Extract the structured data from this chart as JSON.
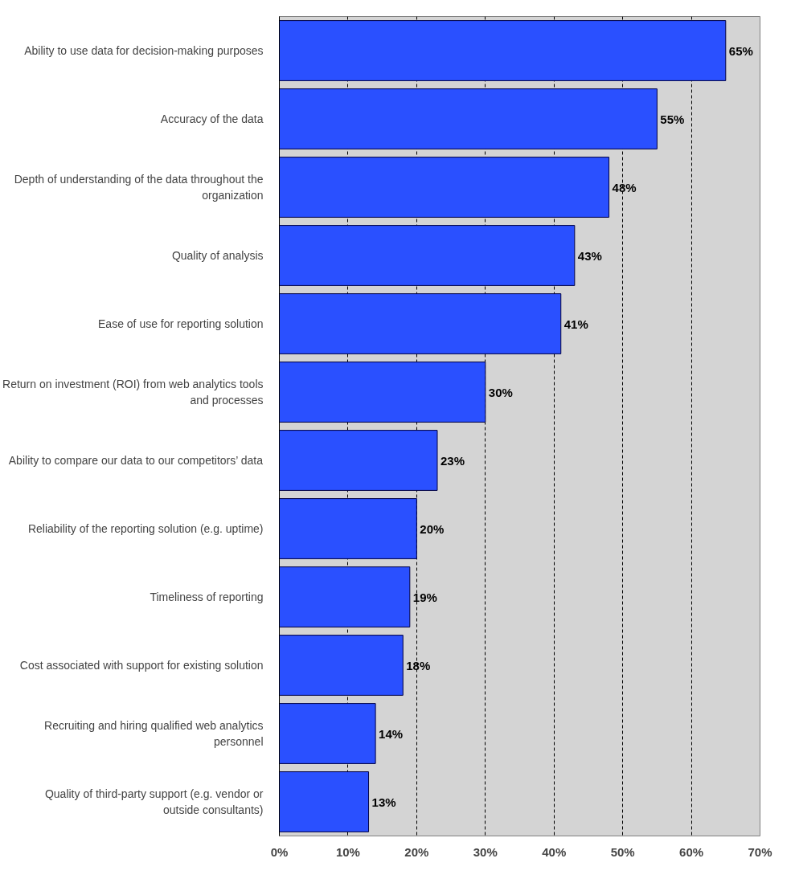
{
  "chart_data": {
    "type": "bar",
    "orientation": "horizontal",
    "categories": [
      "Ability to use data for decision-making purposes",
      "Accuracy of the data",
      "Depth of understanding of the data throughout the organization",
      "Quality of analysis",
      "Ease of use for reporting solution",
      "Return on investment (ROI) from web analytics tools and processes",
      "Ability to compare our data to our competitors’ data",
      "Reliability of the reporting solution (e.g. uptime)",
      "Timeliness of reporting",
      "Cost associated with support for existing solution",
      "Recruiting and hiring qualified web analytics personnel",
      "Quality of third-party support (e.g. vendor or outside consultants)"
    ],
    "values": [
      65,
      55,
      48,
      43,
      41,
      30,
      23,
      20,
      19,
      18,
      14,
      13
    ],
    "value_labels": [
      "65%",
      "55%",
      "48%",
      "43%",
      "41%",
      "30%",
      "23%",
      "20%",
      "19%",
      "18%",
      "14%",
      "13%"
    ],
    "color": "#2a50ff",
    "xlim": [
      0,
      70
    ],
    "xticks": [
      {
        "value": 0,
        "label": "0%"
      },
      {
        "value": 10,
        "label": "10%"
      },
      {
        "value": 20,
        "label": "20%"
      },
      {
        "value": 30,
        "label": "30%"
      },
      {
        "value": 40,
        "label": "40%"
      },
      {
        "value": 50,
        "label": "50%"
      },
      {
        "value": 60,
        "label": "60%"
      },
      {
        "value": 70,
        "label": "70%"
      }
    ],
    "grid": "x"
  }
}
